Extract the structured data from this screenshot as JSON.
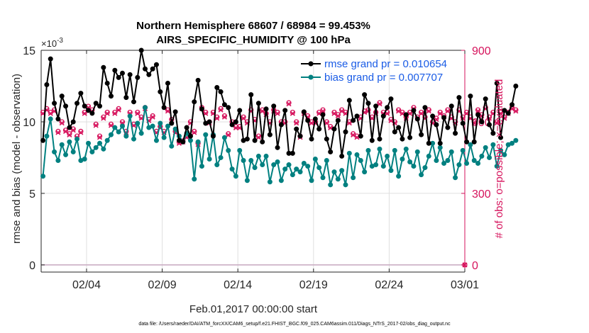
{
  "chart_data": {
    "type": "line",
    "title": "Northern Hemisphere 68607 / 68984 = 99.453%",
    "subtitle": "AIRS_SPECIFIC_HUMIDITY @ 100 hPa",
    "xlabel": "Feb.01,2017 00:00:00 start",
    "ylabel": "rmse and bias (model - observation)",
    "ylabel_right": "# of obs: o=possible; ×=evaluated",
    "y_exponent": "×10",
    "y_exponent_power": "-3",
    "footer": "data file: /Users/raeder/DAI/ATM_forcXX/CAM6_setup/f.e21.FHIST_BGC.f09_025.CAM6assim.011/Diags_NTrS_2017-02/obs_diag_output.nc",
    "xlim": [
      0.0,
      28.0
    ],
    "ylim": [
      -0.0005,
      0.015
    ],
    "ylim_right": [
      -30,
      900
    ],
    "x_ticks": [
      3,
      8,
      13,
      18,
      23,
      28
    ],
    "x_tick_labels": [
      "02/04",
      "02/09",
      "02/14",
      "02/19",
      "02/24",
      "03/01"
    ],
    "y_ticks": [
      0,
      0.005,
      0.01,
      0.015
    ],
    "y_tick_labels": [
      "0",
      "5",
      "10",
      "15"
    ],
    "y_ticks_right": [
      0,
      300,
      600,
      900
    ],
    "y_tick_labels_right": [
      "0",
      "300",
      "600",
      "900"
    ],
    "grid": true,
    "legend_position": "top-right",
    "colors": {
      "rmse": "#000000",
      "bias": "#008080",
      "nobs": "#d6135c",
      "axis": "#262626",
      "grid": "#dfdfdf",
      "zero": "#c8a8c0"
    },
    "series": [
      {
        "name": "rmse grand pr = 0.010654",
        "axis": "left",
        "step": 0.25,
        "values": [
          0.0087,
          0.0126,
          0.0144,
          0.0113,
          0.0102,
          0.0118,
          0.0111,
          0.0096,
          0.01,
          0.0113,
          0.012,
          0.0111,
          0.0108,
          0.0106,
          0.0113,
          0.0111,
          0.0138,
          0.0127,
          0.0118,
          0.0136,
          0.0131,
          0.0134,
          0.0117,
          0.0133,
          0.0114,
          0.0131,
          0.015,
          0.0137,
          0.0133,
          0.0137,
          0.014,
          0.0121,
          0.011,
          0.0127,
          0.0099,
          0.0107,
          0.0087,
          0.0086,
          0.0096,
          0.009,
          0.0114,
          0.0129,
          0.0109,
          0.0099,
          0.01,
          0.009,
          0.0124,
          0.0121,
          0.0112,
          0.011,
          0.0098,
          0.01,
          0.0108,
          0.0087,
          0.0088,
          0.0119,
          0.0087,
          0.0113,
          0.0086,
          0.0109,
          0.0091,
          0.0111,
          0.0082,
          0.0098,
          0.0108,
          0.0078,
          0.0078,
          0.0095,
          0.009,
          0.0107,
          0.0101,
          0.0088,
          0.0102,
          0.0095,
          0.0105,
          0.0088,
          0.0079,
          0.0095,
          0.0101,
          0.0076,
          0.0093,
          0.0115,
          0.0101,
          0.0104,
          0.009,
          0.0119,
          0.0113,
          0.0087,
          0.0111,
          0.0088,
          0.0104,
          0.011,
          0.0116,
          0.0093,
          0.0096,
          0.0088,
          0.0105,
          0.0089,
          0.0108,
          0.0102,
          0.0091,
          0.011,
          0.0085,
          0.0104,
          0.0098,
          0.0085,
          0.0103,
          0.0096,
          0.0111,
          0.0092,
          0.0117,
          0.0099,
          0.0086,
          0.0118,
          0.0086,
          0.0105,
          0.01,
          0.0116,
          0.0098,
          0.0092,
          0.0127,
          0.0089,
          0.0108,
          0.0106,
          0.0112,
          0.0125
        ]
      },
      {
        "name": "bias grand pr = 0.007707",
        "axis": "left",
        "step": 0.25,
        "values": [
          0.0062,
          0.009,
          0.0102,
          0.0079,
          0.0073,
          0.0084,
          0.0077,
          0.0086,
          0.0079,
          0.0088,
          0.0073,
          0.0074,
          0.0085,
          0.0079,
          0.0082,
          0.0085,
          0.0081,
          0.0087,
          0.0091,
          0.0096,
          0.0093,
          0.0097,
          0.009,
          0.0104,
          0.0088,
          0.0099,
          0.0092,
          0.011,
          0.0096,
          0.0097,
          0.0087,
          0.0099,
          0.0089,
          0.0097,
          0.0083,
          0.0095,
          0.009,
          0.0086,
          0.0092,
          0.0087,
          0.006,
          0.0086,
          0.0069,
          0.0091,
          0.0074,
          0.0091,
          0.007,
          0.0075,
          0.0089,
          0.008,
          0.0067,
          0.0062,
          0.008,
          0.0073,
          0.0059,
          0.0073,
          0.0068,
          0.0076,
          0.007,
          0.0076,
          0.0058,
          0.007,
          0.0072,
          0.0059,
          0.0067,
          0.007,
          0.0063,
          0.0067,
          0.0065,
          0.0071,
          0.0069,
          0.0059,
          0.0074,
          0.0068,
          0.0061,
          0.0073,
          0.0056,
          0.0065,
          0.006,
          0.0066,
          0.0056,
          0.0078,
          0.0061,
          0.0077,
          0.0073,
          0.0065,
          0.008,
          0.0069,
          0.007,
          0.0081,
          0.0069,
          0.0076,
          0.0066,
          0.008,
          0.0062,
          0.0074,
          0.0081,
          0.0072,
          0.0069,
          0.0079,
          0.0063,
          0.0068,
          0.0076,
          0.0085,
          0.0073,
          0.0082,
          0.0071,
          0.0073,
          0.0079,
          0.0061,
          0.007,
          0.008,
          0.0071,
          0.0084,
          0.0073,
          0.0071,
          0.0076,
          0.0082,
          0.0075,
          0.0084,
          0.0069,
          0.008,
          0.0077,
          0.0084,
          0.0085,
          0.0087
        ]
      },
      {
        "name": "# of obs possible",
        "axis": "right",
        "marker": "o",
        "step": 0.25,
        "values": [
          640,
          655,
          640,
          650,
          560,
          600,
          565,
          550,
          570,
          540,
          560,
          640,
          665,
          650,
          590,
          540,
          620,
          640,
          590,
          640,
          655,
          600,
          560,
          640,
          590,
          640,
          620,
          660,
          610,
          625,
          560,
          580,
          560,
          650,
          610,
          560,
          515,
          520,
          540,
          600,
          560,
          510,
          660,
          640,
          600,
          640,
          620,
          655,
          625,
          550,
          600,
          580,
          580,
          620,
          600,
          650,
          610,
          540,
          650,
          635,
          600,
          650,
          640,
          600,
          600,
          680,
          640,
          600,
          540,
          640,
          625,
          600,
          600,
          640,
          650,
          600,
          580,
          640,
          630,
          650,
          640,
          600,
          550,
          540,
          620,
          645,
          650,
          620,
          640,
          680,
          640,
          640,
          610,
          600,
          650,
          640,
          620,
          640,
          660,
          620,
          640,
          620,
          650,
          600,
          615,
          640,
          625,
          650,
          620,
          600,
          650,
          620,
          640,
          620,
          600,
          650,
          630,
          660,
          620,
          640,
          600,
          640,
          620,
          640,
          660,
          650
        ]
      },
      {
        "name": "# of obs evaluated",
        "axis": "right",
        "marker": "x",
        "step": 0.25,
        "values": [
          635,
          650,
          635,
          645,
          555,
          595,
          560,
          545,
          565,
          535,
          555,
          635,
          660,
          645,
          585,
          535,
          615,
          635,
          585,
          635,
          650,
          595,
          555,
          635,
          585,
          635,
          615,
          655,
          605,
          620,
          555,
          575,
          555,
          645,
          605,
          555,
          510,
          515,
          535,
          595,
          555,
          505,
          655,
          635,
          595,
          635,
          615,
          650,
          620,
          545,
          595,
          575,
          575,
          615,
          595,
          645,
          605,
          535,
          645,
          630,
          595,
          645,
          635,
          595,
          595,
          675,
          635,
          595,
          535,
          635,
          620,
          595,
          595,
          635,
          645,
          595,
          575,
          635,
          625,
          645,
          635,
          595,
          545,
          535,
          615,
          640,
          645,
          615,
          635,
          675,
          635,
          635,
          605,
          595,
          645,
          635,
          615,
          635,
          655,
          615,
          635,
          615,
          645,
          595,
          610,
          635,
          620,
          645,
          615,
          595,
          645,
          615,
          635,
          615,
          595,
          645,
          625,
          655,
          615,
          635,
          595,
          635,
          615,
          635,
          655,
          645
        ]
      }
    ]
  }
}
